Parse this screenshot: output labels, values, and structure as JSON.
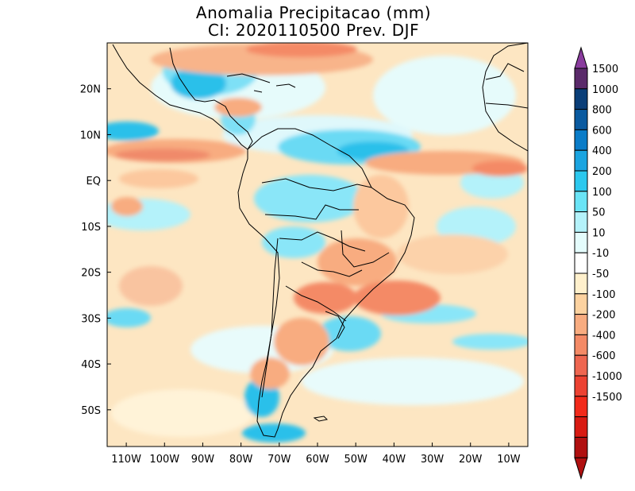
{
  "title": {
    "line1": "Anomalia Precipitacao (mm)",
    "line2": "CI: 2020110500 Prev. DJF"
  },
  "map": {
    "region": "South America",
    "variable": "precipitation anomaly",
    "units": "mm",
    "lon_range": [
      -115,
      -5
    ],
    "lat_range": [
      -58,
      30
    ],
    "lat_ticks": [
      {
        "value": 20,
        "label": "20N"
      },
      {
        "value": 10,
        "label": "10N"
      },
      {
        "value": 0,
        "label": "EQ"
      },
      {
        "value": -10,
        "label": "10S"
      },
      {
        "value": -20,
        "label": "20S"
      },
      {
        "value": -30,
        "label": "30S"
      },
      {
        "value": -40,
        "label": "40S"
      },
      {
        "value": -50,
        "label": "50S"
      }
    ],
    "lon_ticks": [
      {
        "value": -110,
        "label": "110W"
      },
      {
        "value": -100,
        "label": "100W"
      },
      {
        "value": -90,
        "label": "90W"
      },
      {
        "value": -80,
        "label": "80W"
      },
      {
        "value": -70,
        "label": "70W"
      },
      {
        "value": -60,
        "label": "60W"
      },
      {
        "value": -50,
        "label": "50W"
      },
      {
        "value": -40,
        "label": "40W"
      },
      {
        "value": -30,
        "label": "30W"
      },
      {
        "value": -20,
        "label": "20W"
      },
      {
        "value": -10,
        "label": "10W"
      }
    ]
  },
  "colorbar": {
    "top_arrow_color": "#8a3c9e",
    "bottom_arrow_color": "#b01010",
    "boxes": [
      "#5a2a6a",
      "#0a3e78",
      "#0a5aa0",
      "#0a7cc8",
      "#1aa4e0",
      "#2cc8ee",
      "#6ae4f6",
      "#b4f2fa",
      "#e4fcfc",
      "#ffffff",
      "#fff0cc",
      "#fcd2a0",
      "#f8ac80",
      "#f48a66",
      "#ee6650",
      "#ec4232",
      "#f22a1a",
      "#d81a12",
      "#b01010"
    ],
    "labels": [
      "1500",
      "1000",
      "800",
      "600",
      "400",
      "200",
      "100",
      "50",
      "10",
      "-10",
      "-50",
      "-100",
      "-200",
      "-400",
      "-600",
      "-1000",
      "-1500"
    ]
  }
}
